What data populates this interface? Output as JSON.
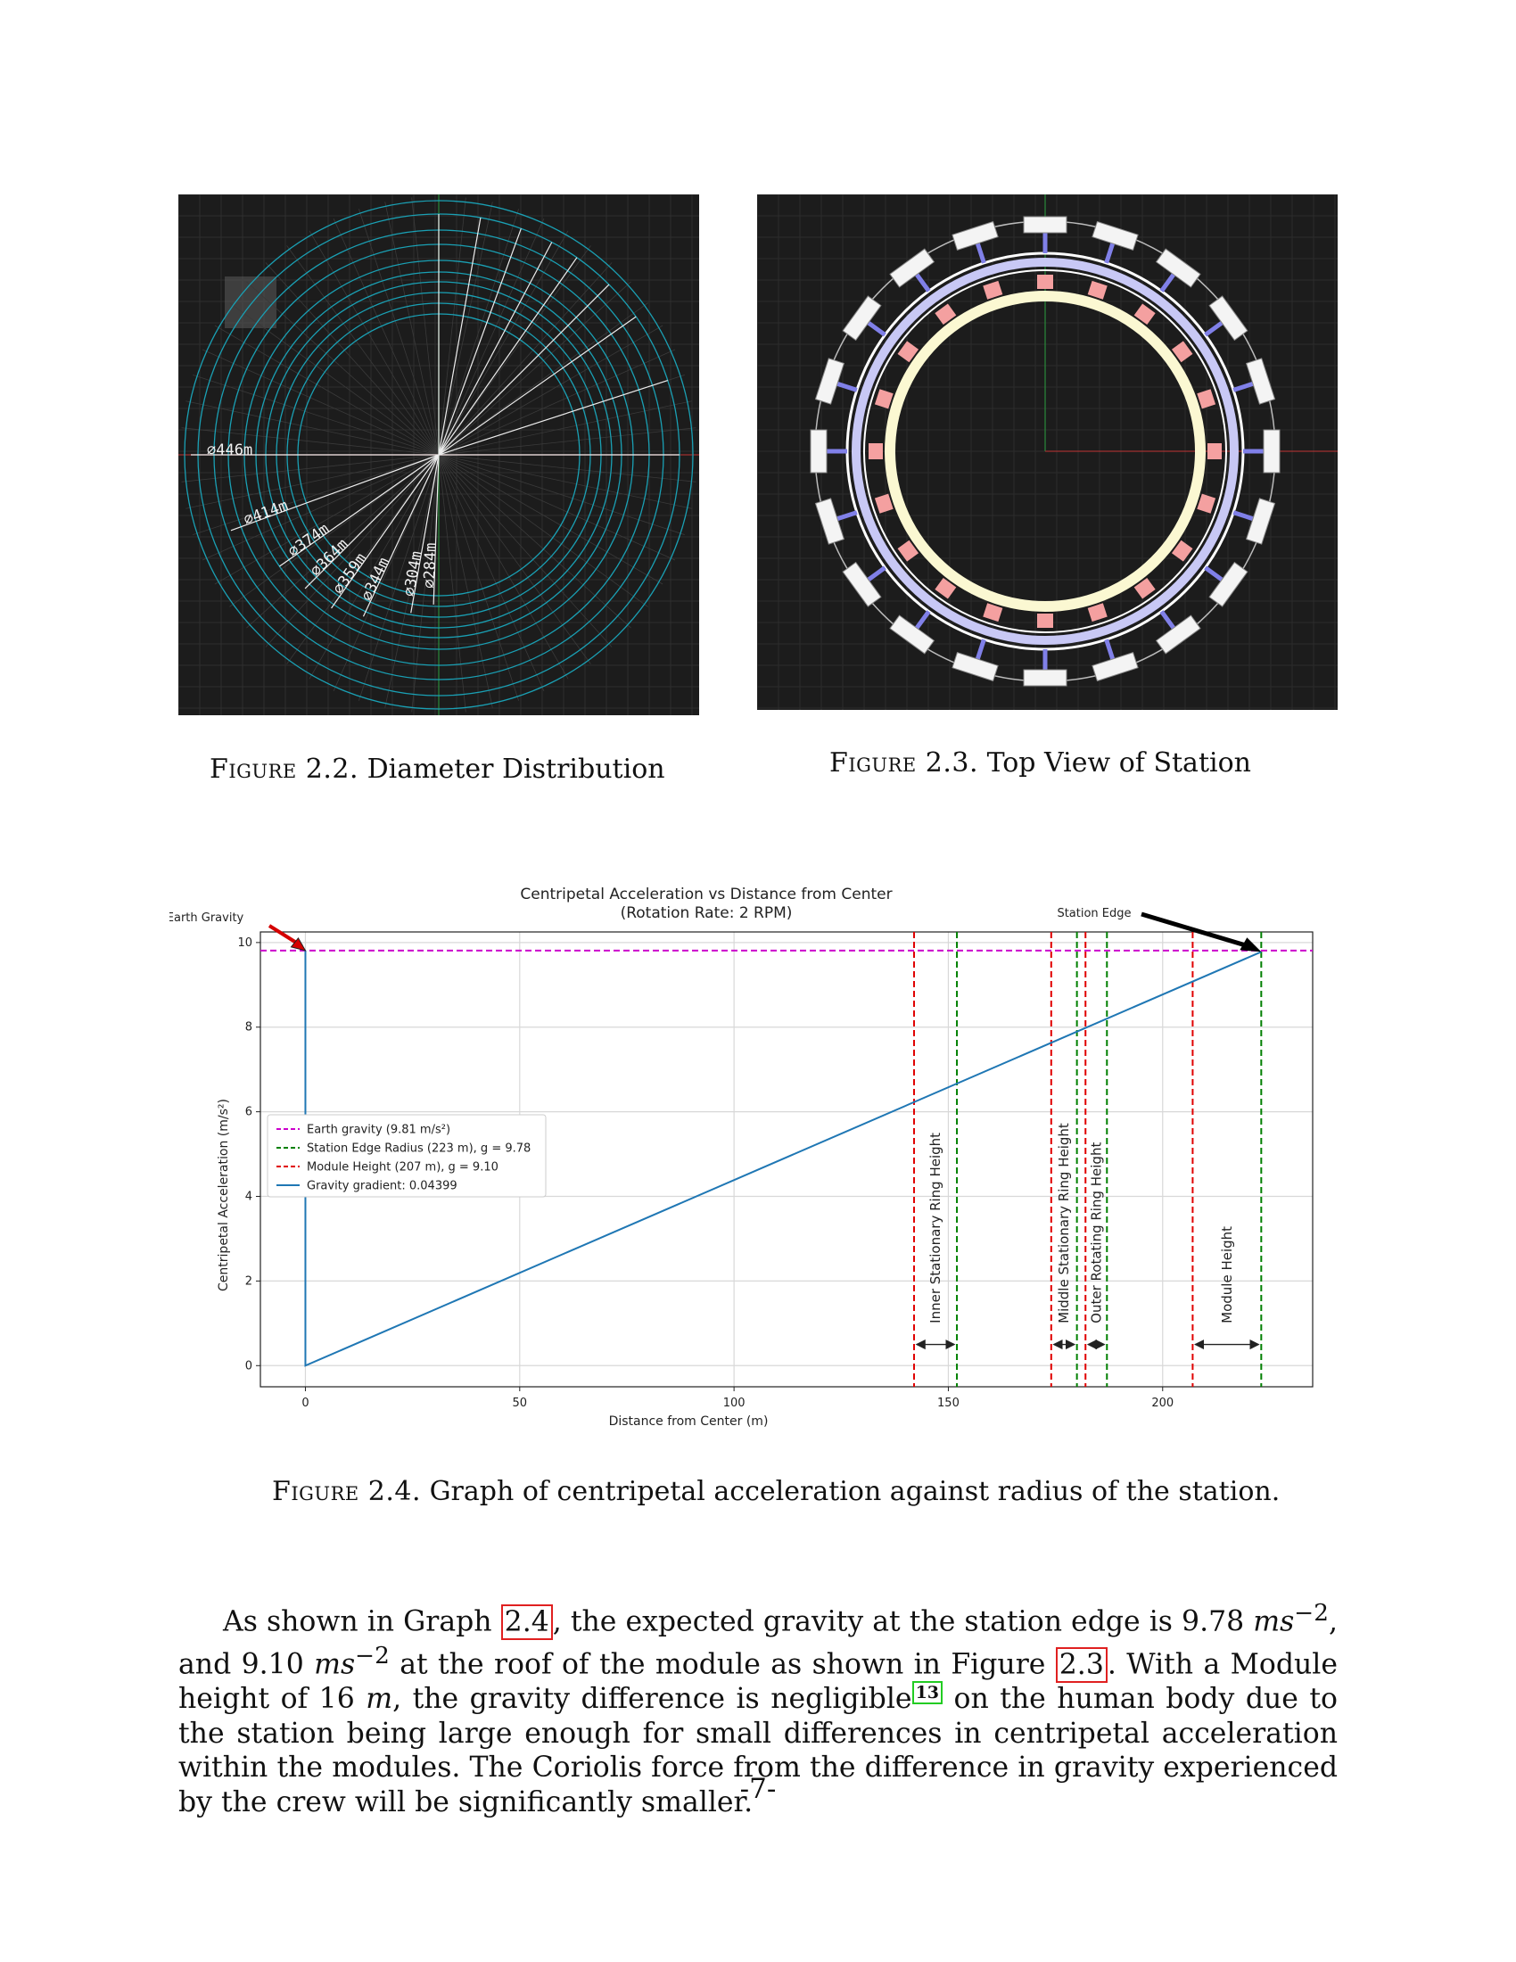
{
  "figure_2_2": {
    "caption_label": "Figure 2.2.",
    "caption_text": "Diameter Distribution",
    "diameter_labels": [
      "⌀446m",
      "⌀414m",
      "⌀374m",
      "⌀364m",
      "⌀359m",
      "⌀344m",
      "⌀304m",
      "⌀284m"
    ]
  },
  "figure_2_3": {
    "caption_label": "Figure 2.3.",
    "caption_text": "Top View of Station"
  },
  "figure_2_4": {
    "caption_label": "Figure 2.4.",
    "caption_text": "Graph of centripetal acceleration against radius of the station."
  },
  "chart_data": {
    "type": "line",
    "title": "Centripetal Acceleration vs Distance from Center",
    "subtitle": "(Rotation Rate: 2 RPM)",
    "xlabel": "Distance from Center (m)",
    "ylabel": "Centripetal Acceleration (m/s²)",
    "xlim": [
      -10.5,
      235
    ],
    "ylim": [
      -0.5,
      10.25
    ],
    "xticks": [
      0,
      50,
      100,
      150,
      200
    ],
    "yticks": [
      0,
      2,
      4,
      6,
      8,
      10
    ],
    "grid": true,
    "legend_position": "center-left",
    "series": [
      {
        "name": "Earth gravity (9.81 m/s²)",
        "kind": "hline",
        "y": 9.81,
        "color": "#cc00cc",
        "dash": true
      },
      {
        "name": "Station Edge Radius (223 m), g = 9.78",
        "kind": "vline",
        "x": 223,
        "color": "#008000",
        "dash": true
      },
      {
        "name": "Module Height (207 m), g = 9.10",
        "kind": "vline",
        "x": 207,
        "color": "#e00000",
        "dash": true
      },
      {
        "name": "Gravity gradient: 0.04399",
        "kind": "line",
        "x": [
          0,
          0,
          223
        ],
        "y": [
          9.81,
          0,
          9.78
        ],
        "color": "#1f77b4"
      }
    ],
    "extra_green_lines": [
      152,
      180,
      187,
      223
    ],
    "extra_red_lines": [
      142,
      174,
      182,
      207
    ],
    "spans": [
      {
        "label": "Inner Stationary Ring Height",
        "x0": 142,
        "x1": 152
      },
      {
        "label": "Middle Stationary Ring Height",
        "x0": 174,
        "x1": 180
      },
      {
        "label": "Outer Rotating Ring Height",
        "x0": 182,
        "x1": 187
      },
      {
        "label": "Module Height",
        "x0": 207,
        "x1": 223
      }
    ],
    "annotations": [
      {
        "text": "Earth Gravity",
        "x": 0,
        "y": 9.81,
        "arrow_color": "#d40000"
      },
      {
        "text": "Station Edge",
        "x": 223,
        "y": 9.78,
        "arrow_color": "#000000"
      }
    ]
  },
  "paragraph": {
    "t1": "As shown in Graph ",
    "ref1": "2.4",
    "t2": ", the expected gravity at the station edge is 9.78 ",
    "unit1": "ms",
    "sup1": "−2",
    "t3": ", and 9.10 ",
    "unit2": "ms",
    "sup2": "−2",
    "t4": " at the roof of the module as shown in Figure ",
    "ref2": "2.3",
    "t5": ". With a Module height of 16 ",
    "unit3": "m",
    "t6": ", the gravity difference is negligible",
    "footnote": "13",
    "t7": " on the human body due to the station being large enough for small differences in centripetal acceleration within the modules. The Coriolis force from the difference in gravity experienced by the crew will be significantly smaller."
  },
  "page_number": "-7-"
}
